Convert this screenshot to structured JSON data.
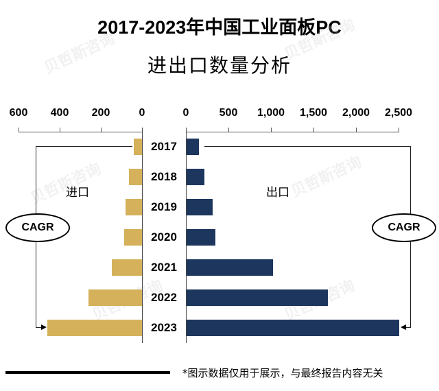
{
  "header": {
    "title_line1": "2017-2023年中国工业面板PC",
    "title_line2": "进出口数量分析"
  },
  "watermark": "贝哲斯咨询",
  "footnote": "*图示数据仅用于展示，与最终报告内容无关",
  "colors": {
    "import": "#d4b15a",
    "export": "#1c365e"
  },
  "labels": {
    "import": "进口",
    "export": "出口",
    "cagr_left": "CAGR",
    "cagr_right": "CAGR"
  },
  "axes": {
    "left_ticks": [
      "600",
      "400",
      "200",
      "0"
    ],
    "right_ticks": [
      "0",
      "500",
      "1,000",
      "1,500",
      "2,000",
      "2,500"
    ]
  },
  "years": [
    "2017",
    "2018",
    "2019",
    "2020",
    "2021",
    "2022",
    "2023"
  ],
  "chart_data": {
    "type": "bar",
    "orientation": "horizontal-butterfly",
    "title": "2017-2023年中国工业面板PC进出口数量分析",
    "categories": [
      "2017",
      "2018",
      "2019",
      "2020",
      "2021",
      "2022",
      "2023"
    ],
    "series": [
      {
        "name": "进口",
        "side": "left",
        "color": "#d4b15a",
        "values": [
          40,
          63,
          80,
          87,
          147,
          260,
          460
        ]
      },
      {
        "name": "出口",
        "side": "right",
        "color": "#1c365e",
        "values": [
          145,
          210,
          306,
          340,
          1016,
          1660,
          2500
        ]
      }
    ],
    "left_axis": {
      "range": [
        600,
        0
      ],
      "ticks": [
        600,
        400,
        200,
        0
      ]
    },
    "right_axis": {
      "range": [
        0,
        2500
      ],
      "ticks": [
        0,
        500,
        1000,
        1500,
        2000,
        2500
      ]
    },
    "annotations": [
      "CAGR (进口 2017→2023)",
      "CAGR (出口 2017→2023)"
    ],
    "grid": false,
    "legend": "inline labels 进口 / 出口"
  }
}
